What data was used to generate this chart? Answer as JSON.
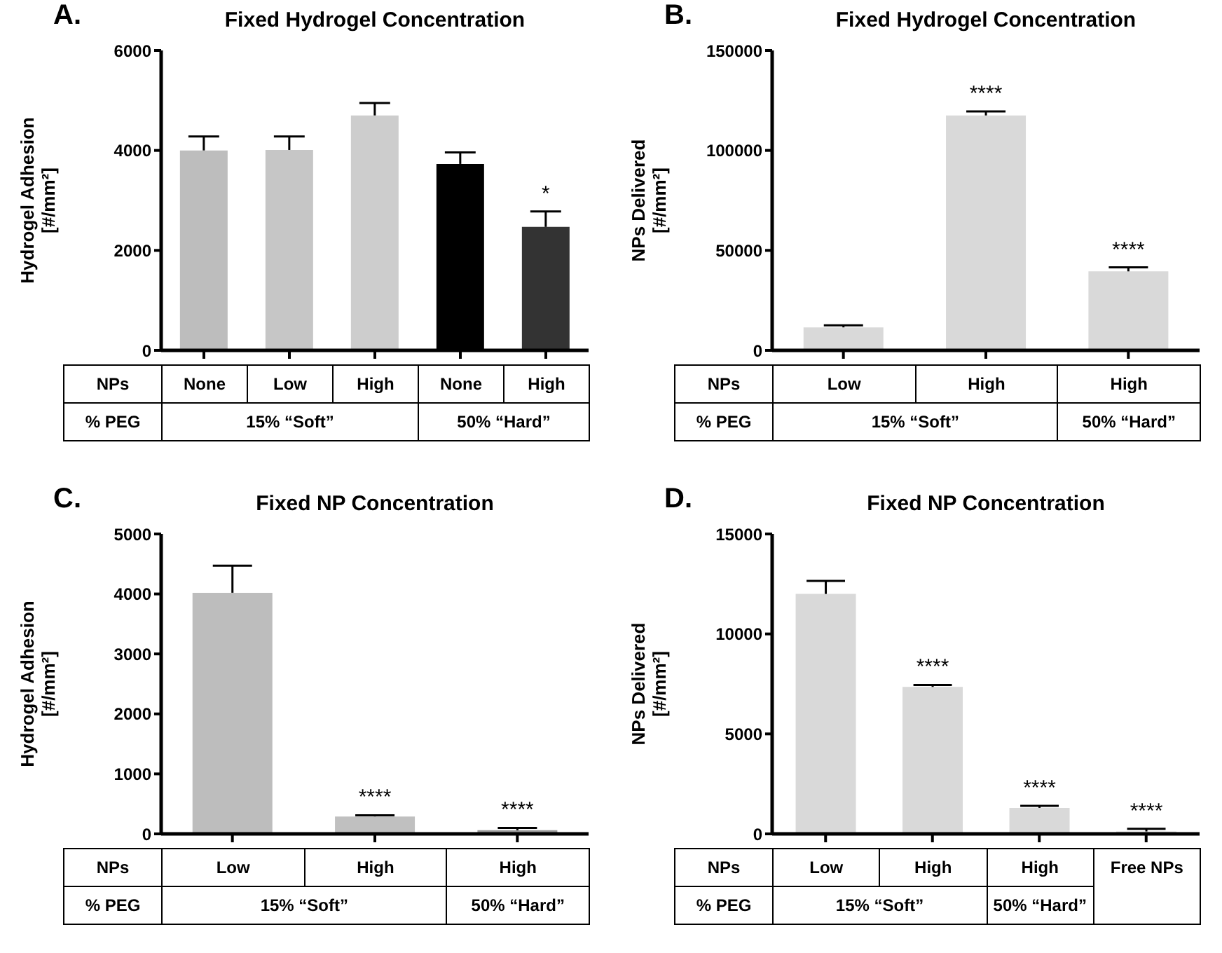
{
  "chart_data": [
    {
      "type": "bar",
      "title": "Fixed Hydrogel Concentration",
      "ylabel": "Hydrogel Adhesion\n[#/mm²]",
      "categories": [
        "None",
        "Low",
        "High",
        "None",
        "High"
      ],
      "values": [
        4000,
        4010,
        4700,
        3730,
        2470
      ],
      "colors": [
        "#bdbdbd",
        "#c6c6c6",
        "#cdcdcd",
        "#000000",
        "#333333"
      ],
      "errors": [
        [
          4000,
          4280
        ],
        [
          4010,
          4280
        ],
        [
          4700,
          4950
        ],
        [
          3730,
          3960
        ],
        [
          2470,
          2780
        ]
      ],
      "value_labels": [
        null,
        null,
        null,
        null,
        "*"
      ],
      "ylim": [
        0,
        6000
      ],
      "yticks": [
        0,
        2000,
        4000,
        6000
      ],
      "annotations": [
        "A.",
        "NPs",
        "% PEG",
        "15% “Soft”",
        "50% “Hard”"
      ]
    },
    {
      "type": "bar",
      "title": "Fixed Hydrogel Concentration",
      "ylabel": "NPs Delivered\n[#/mm²]",
      "categories": [
        "Low",
        "High",
        "High"
      ],
      "values": [
        11500,
        117500,
        39500
      ],
      "colors": [
        "#d9d9d9",
        "#d9d9d9",
        "#d9d9d9"
      ],
      "errors": [
        [
          11500,
          12500
        ],
        [
          117500,
          119500
        ],
        [
          39500,
          41500
        ]
      ],
      "value_labels": [
        null,
        "****",
        "****"
      ],
      "ylim": [
        0,
        150000
      ],
      "yticks": [
        0,
        50000,
        100000,
        150000
      ],
      "annotations": [
        "B.",
        "NPs",
        "% PEG",
        "15% “Soft”",
        "50% “Hard”"
      ]
    },
    {
      "type": "bar",
      "title": "Fixed NP Concentration",
      "ylabel": "Hydrogel Adhesion\n[#/mm²]",
      "categories": [
        "Low",
        "High",
        "High"
      ],
      "values": [
        4020,
        290,
        60
      ],
      "colors": [
        "#bdbdbd",
        "#c0c0c0",
        "#999999"
      ],
      "errors": [
        [
          4020,
          4470
        ],
        [
          290,
          310
        ],
        [
          60,
          100
        ]
      ],
      "value_labels": [
        null,
        "****",
        "****"
      ],
      "ylim": [
        0,
        5000
      ],
      "yticks": [
        0,
        1000,
        2000,
        3000,
        4000,
        5000
      ],
      "annotations": [
        "C.",
        "NPs",
        "% PEG",
        "15% “Soft”",
        "50% “Hard”"
      ]
    },
    {
      "type": "bar",
      "title": "Fixed NP Concentration",
      "ylabel": "NPs Delivered\n[#/mm²]",
      "categories": [
        "Low",
        "High",
        "High",
        "Free NPs"
      ],
      "values": [
        12000,
        7350,
        1300,
        120
      ],
      "colors": [
        "#d9d9d9",
        "#d9d9d9",
        "#d9d9d9",
        "#d9d9d9"
      ],
      "errors": [
        [
          12000,
          12650
        ],
        [
          7350,
          7450
        ],
        [
          1300,
          1400
        ],
        [
          120,
          250
        ]
      ],
      "value_labels": [
        null,
        "****",
        "****",
        "****"
      ],
      "ylim": [
        0,
        15000
      ],
      "yticks": [
        0,
        5000,
        10000,
        15000
      ],
      "annotations": [
        "D.",
        "NPs",
        "% PEG",
        "15% “Soft”",
        "50% “Hard”"
      ]
    }
  ]
}
